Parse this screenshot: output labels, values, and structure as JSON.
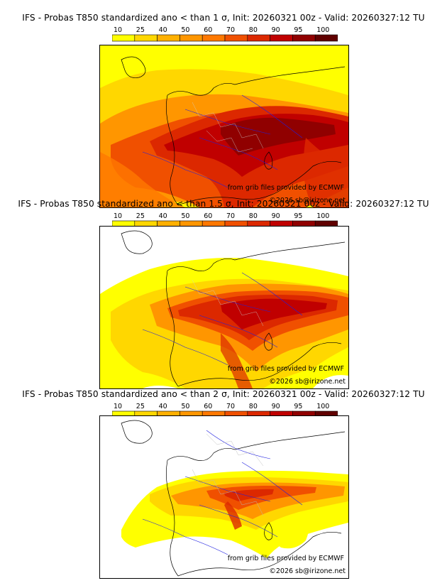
{
  "colorbar": {
    "ticks": [
      "10",
      "25",
      "40",
      "50",
      "60",
      "70",
      "80",
      "90",
      "95",
      "100"
    ],
    "colors": [
      "#ffff00",
      "#ffd700",
      "#ffb000",
      "#ff9600",
      "#ff7800",
      "#f05000",
      "#dc2800",
      "#c00000",
      "#900000",
      "#600000"
    ]
  },
  "credits": {
    "source": "from grib files provided by ECMWF",
    "copyright": "©2026 sb@irizone.net"
  },
  "panels": [
    {
      "title": "IFS - Probas T850  standardized ano < than 1 σ, Init: 20260321 00z - Valid: 20260327:12 TU",
      "threshold_sigma": 1,
      "coverage": "high"
    },
    {
      "title": "IFS - Probas T850  standardized ano < than 1.5 σ, Init: 20260321 00z - Valid: 20260327:12 TU",
      "threshold_sigma": 1.5,
      "coverage": "medium"
    },
    {
      "title": "IFS - Probas T850  standardized ano < than 2 σ, Init: 20260321 00z - Valid: 20260327:12 TU",
      "threshold_sigma": 2,
      "coverage": "low"
    }
  ]
}
